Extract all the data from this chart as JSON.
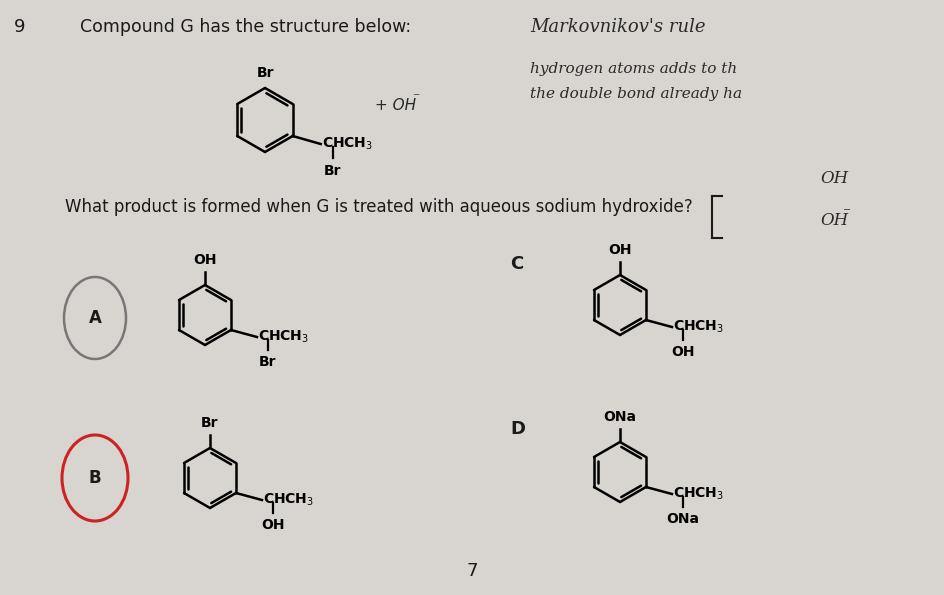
{
  "bg_color": "#d8d5d0",
  "q_number": "9",
  "question_text": "Compound G has the structure below:",
  "question_text2": "What product is formed when G is treated with aqueous sodium hydroxide?",
  "handwritten_right1": "Markovnikov's rule",
  "handwritten_right3": "hydrogen atoms adds to th",
  "handwritten_right4": "the double bond already ha",
  "label_A": "A",
  "label_B": "B",
  "label_C": "C",
  "label_D": "D",
  "number_bottom": "7",
  "text_color": "#1a1a1a",
  "hand_color": "#2a2a2a"
}
